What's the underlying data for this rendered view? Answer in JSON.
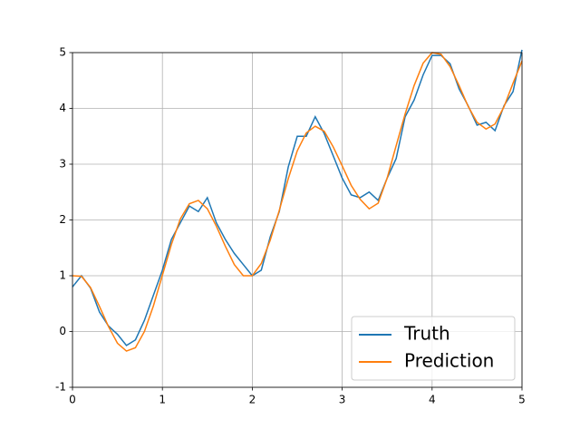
{
  "chart_data": {
    "type": "line",
    "x": [
      0,
      0.1,
      0.2,
      0.3,
      0.4,
      0.5,
      0.6,
      0.7,
      0.8,
      0.9,
      1.0,
      1.1,
      1.2,
      1.3,
      1.4,
      1.5,
      1.6,
      1.7,
      1.8,
      1.9,
      2.0,
      2.1,
      2.2,
      2.3,
      2.4,
      2.5,
      2.6,
      2.7,
      2.8,
      2.9,
      3.0,
      3.1,
      3.2,
      3.3,
      3.4,
      3.5,
      3.6,
      3.7,
      3.8,
      3.9,
      4.0,
      4.1,
      4.2,
      4.3,
      4.4,
      4.5,
      4.6,
      4.7,
      4.8,
      4.9,
      5.0
    ],
    "series": [
      {
        "name": "Truth",
        "color": "#1f77b4",
        "values": [
          0.8,
          1.0,
          0.78,
          0.35,
          0.1,
          -0.05,
          -0.25,
          -0.15,
          0.2,
          0.65,
          1.1,
          1.65,
          1.95,
          2.25,
          2.15,
          2.4,
          1.95,
          1.65,
          1.4,
          1.2,
          1.0,
          1.1,
          1.7,
          2.15,
          2.95,
          3.5,
          3.5,
          3.85,
          3.55,
          3.15,
          2.75,
          2.45,
          2.4,
          2.5,
          2.35,
          2.75,
          3.1,
          3.85,
          4.15,
          4.6,
          4.95,
          4.95,
          4.8,
          4.35,
          4.05,
          3.7,
          3.75,
          3.6,
          4.05,
          4.3,
          5.05
        ]
      },
      {
        "name": "Prediction",
        "color": "#ff7f0e",
        "values": [
          1.0,
          0.99,
          0.79,
          0.45,
          0.09,
          -0.21,
          -0.35,
          -0.29,
          0.0,
          0.46,
          1.01,
          1.56,
          2.02,
          2.29,
          2.35,
          2.2,
          1.89,
          1.53,
          1.2,
          1.0,
          1.0,
          1.22,
          1.64,
          2.17,
          2.74,
          3.24,
          3.56,
          3.68,
          3.59,
          3.31,
          2.97,
          2.62,
          2.37,
          2.2,
          2.3,
          2.75,
          3.33,
          3.9,
          4.41,
          4.81,
          5.0,
          4.97,
          4.75,
          4.41,
          4.04,
          3.75,
          3.63,
          3.72,
          4.03,
          4.45,
          4.85
        ]
      }
    ],
    "xlim": [
      0,
      5
    ],
    "ylim": [
      -1,
      5
    ],
    "xticks": [
      0,
      1,
      2,
      3,
      4,
      5
    ],
    "yticks": [
      -1,
      0,
      1,
      2,
      3,
      4,
      5
    ],
    "grid": true,
    "legend": "lower right"
  }
}
